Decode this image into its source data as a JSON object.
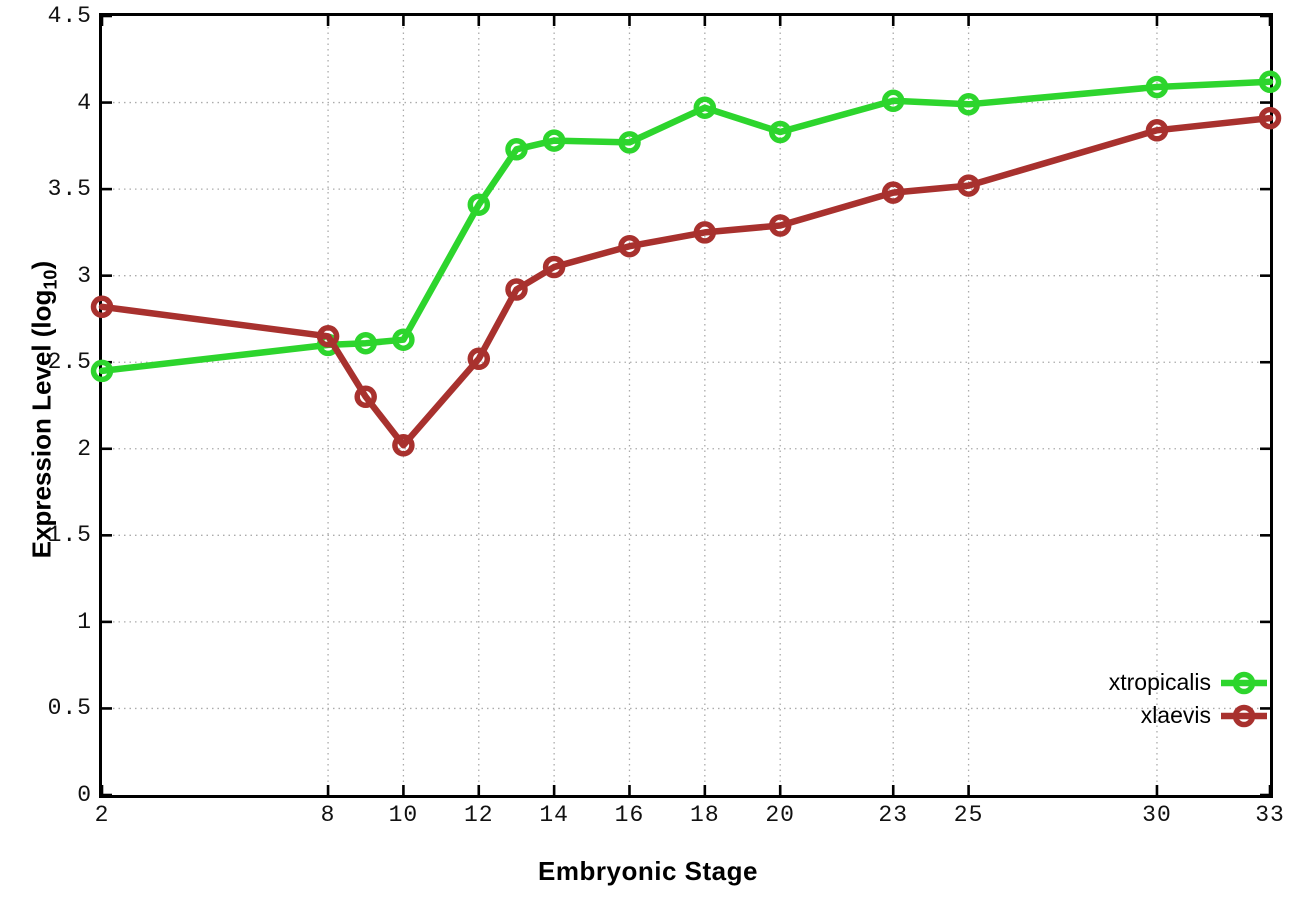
{
  "chart": {
    "ylabel_main": "Expression Level (log",
    "ylabel_sub": "10",
    "ylabel_close": ")"
  },
  "chart_data": {
    "type": "line",
    "title": "",
    "xlabel": "Embryonic Stage",
    "ylabel": "Expression Level (log10)",
    "x": [
      2,
      8,
      9,
      10,
      12,
      13,
      14,
      16,
      18,
      20,
      23,
      25,
      30,
      33
    ],
    "series": [
      {
        "name": "xtropicalis",
        "color": "#2dd52d",
        "values": [
          2.45,
          2.6,
          2.61,
          2.63,
          3.41,
          3.73,
          3.78,
          3.77,
          3.97,
          3.83,
          4.01,
          3.99,
          4.09,
          4.12
        ]
      },
      {
        "name": "xlaevis",
        "color": "#a8312e",
        "values": [
          2.82,
          2.65,
          2.3,
          2.02,
          2.52,
          2.92,
          3.05,
          3.17,
          3.25,
          3.29,
          3.48,
          3.52,
          3.84,
          3.91
        ]
      }
    ],
    "xlim": [
      2,
      33
    ],
    "ylim": [
      0,
      4.5
    ],
    "x_ticks": [
      2,
      8,
      10,
      12,
      14,
      16,
      18,
      20,
      23,
      25,
      30,
      33
    ],
    "y_ticks": [
      "0",
      "0.5",
      "1",
      "1.5",
      "2",
      "2.5",
      "3",
      "3.5",
      "4",
      "4.5"
    ],
    "grid": true,
    "legend_position": "inside-bottom-right",
    "axis_color": "#000000",
    "grid_color": "#ababab",
    "background": "#ffffff"
  }
}
